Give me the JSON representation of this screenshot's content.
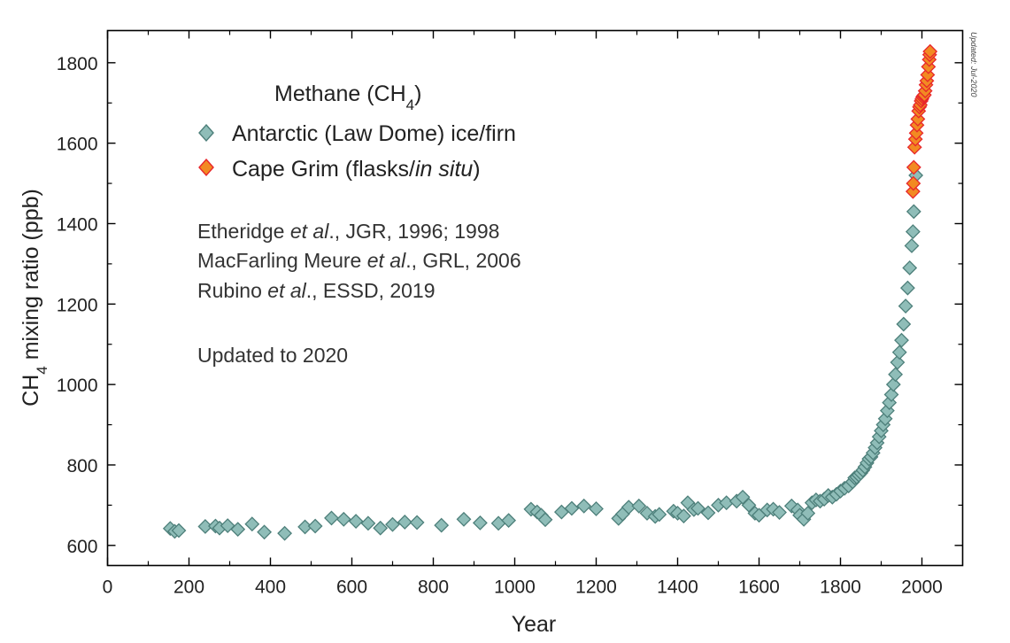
{
  "chart_data": {
    "type": "scatter",
    "title": "Methane (CH4)",
    "title_main": "Methane (CH",
    "title_sub": "4",
    "title_end": ")",
    "xlabel": "Year",
    "ylabel_pre": "CH",
    "ylabel_sub": "4",
    "ylabel_post": " mixing ratio (ppb)",
    "xlim": [
      0,
      2100
    ],
    "ylim": [
      550,
      1880
    ],
    "xticks": [
      0,
      200,
      400,
      600,
      800,
      1000,
      1200,
      1400,
      1600,
      1800,
      2000
    ],
    "yticks": [
      600,
      800,
      1000,
      1200,
      1400,
      1600,
      1800
    ],
    "grid": false,
    "legend_position": "top-left",
    "stamp": "Updated: Jul-2020",
    "colors": {
      "antarctic_fill": "#8fbdb8",
      "antarctic_stroke": "#4d7f7a",
      "capegrim_fill": "#f28a22",
      "capegrim_stroke": "#e8262b",
      "axis": "#000000",
      "text": "#333333"
    },
    "annotations": {
      "refs": [
        {
          "a": "Etheridge ",
          "b": "et al",
          "c": "., JGR, 1996; 1998"
        },
        {
          "a": "MacFarling Meure ",
          "b": "et al",
          "c": "., GRL, 2006"
        },
        {
          "a": "Rubino ",
          "b": "et al",
          "c": "., ESSD, 2019"
        }
      ],
      "updated": "Updated to 2020"
    },
    "series": [
      {
        "name": "Antarctic (Law Dome) ice/firn",
        "label": "Antarctic (Law Dome) ice/firn",
        "marker": "diamond",
        "points": [
          [
            154,
            642
          ],
          [
            165,
            635
          ],
          [
            175,
            637
          ],
          [
            240,
            647
          ],
          [
            265,
            648
          ],
          [
            275,
            643
          ],
          [
            295,
            649
          ],
          [
            320,
            640
          ],
          [
            355,
            653
          ],
          [
            385,
            633
          ],
          [
            435,
            630
          ],
          [
            485,
            646
          ],
          [
            510,
            648
          ],
          [
            550,
            668
          ],
          [
            580,
            665
          ],
          [
            610,
            660
          ],
          [
            640,
            655
          ],
          [
            670,
            643
          ],
          [
            700,
            652
          ],
          [
            730,
            658
          ],
          [
            760,
            657
          ],
          [
            820,
            650
          ],
          [
            875,
            665
          ],
          [
            915,
            656
          ],
          [
            960,
            655
          ],
          [
            985,
            662
          ],
          [
            1040,
            690
          ],
          [
            1055,
            683
          ],
          [
            1065,
            675
          ],
          [
            1075,
            664
          ],
          [
            1115,
            683
          ],
          [
            1140,
            692
          ],
          [
            1170,
            698
          ],
          [
            1200,
            691
          ],
          [
            1255,
            667
          ],
          [
            1265,
            678
          ],
          [
            1280,
            695
          ],
          [
            1305,
            698
          ],
          [
            1325,
            680
          ],
          [
            1345,
            672
          ],
          [
            1355,
            677
          ],
          [
            1390,
            685
          ],
          [
            1400,
            680
          ],
          [
            1415,
            673
          ],
          [
            1425,
            706
          ],
          [
            1440,
            689
          ],
          [
            1450,
            692
          ],
          [
            1475,
            681
          ],
          [
            1500,
            700
          ],
          [
            1520,
            706
          ],
          [
            1545,
            710
          ],
          [
            1560,
            720
          ],
          [
            1575,
            700
          ],
          [
            1590,
            680
          ],
          [
            1600,
            675
          ],
          [
            1620,
            688
          ],
          [
            1635,
            690
          ],
          [
            1650,
            682
          ],
          [
            1680,
            698
          ],
          [
            1695,
            688
          ],
          [
            1700,
            675
          ],
          [
            1710,
            665
          ],
          [
            1720,
            680
          ],
          [
            1730,
            706
          ],
          [
            1740,
            713
          ],
          [
            1750,
            710
          ],
          [
            1760,
            715
          ],
          [
            1770,
            724
          ],
          [
            1780,
            720
          ],
          [
            1790,
            727
          ],
          [
            1800,
            735
          ],
          [
            1810,
            742
          ],
          [
            1820,
            748
          ],
          [
            1830,
            758
          ],
          [
            1835,
            768
          ],
          [
            1840,
            770
          ],
          [
            1845,
            775
          ],
          [
            1850,
            780
          ],
          [
            1855,
            787
          ],
          [
            1860,
            795
          ],
          [
            1865,
            805
          ],
          [
            1870,
            815
          ],
          [
            1875,
            820
          ],
          [
            1880,
            830
          ],
          [
            1885,
            843
          ],
          [
            1890,
            855
          ],
          [
            1895,
            870
          ],
          [
            1900,
            885
          ],
          [
            1905,
            900
          ],
          [
            1910,
            915
          ],
          [
            1915,
            935
          ],
          [
            1920,
            955
          ],
          [
            1925,
            975
          ],
          [
            1930,
            1000
          ],
          [
            1935,
            1025
          ],
          [
            1940,
            1055
          ],
          [
            1945,
            1080
          ],
          [
            1950,
            1110
          ],
          [
            1955,
            1150
          ],
          [
            1960,
            1195
          ],
          [
            1965,
            1240
          ],
          [
            1970,
            1290
          ],
          [
            1975,
            1345
          ],
          [
            1978,
            1380
          ],
          [
            1980,
            1430
          ],
          [
            1985,
            1520
          ]
        ]
      },
      {
        "name": "Cape Grim (flasks/in situ)",
        "label_a": "Cape Grim (flasks/",
        "label_b": "in situ",
        "label_c": ")",
        "marker": "diamond",
        "points": [
          [
            1978,
            1480
          ],
          [
            1979,
            1500
          ],
          [
            1980,
            1540
          ],
          [
            1982,
            1590
          ],
          [
            1984,
            1610
          ],
          [
            1986,
            1625
          ],
          [
            1988,
            1645
          ],
          [
            1990,
            1660
          ],
          [
            1992,
            1680
          ],
          [
            1994,
            1690
          ],
          [
            1996,
            1695
          ],
          [
            1998,
            1705
          ],
          [
            2000,
            1710
          ],
          [
            2002,
            1715
          ],
          [
            2004,
            1718
          ],
          [
            2006,
            1720
          ],
          [
            2008,
            1730
          ],
          [
            2010,
            1745
          ],
          [
            2012,
            1755
          ],
          [
            2014,
            1770
          ],
          [
            2016,
            1790
          ],
          [
            2018,
            1808
          ],
          [
            2019,
            1820
          ],
          [
            2020,
            1828
          ]
        ]
      }
    ]
  }
}
